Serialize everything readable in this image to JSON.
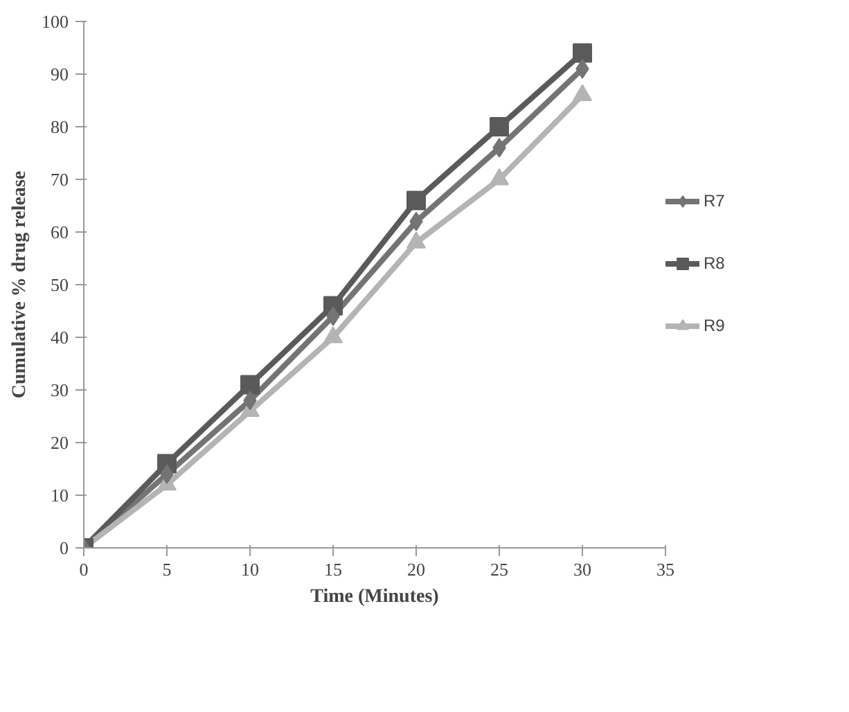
{
  "chart_data": {
    "type": "line",
    "xlabel": "Time (Minutes)",
    "ylabel": "Cumulative % drug release",
    "x": [
      0,
      5,
      10,
      15,
      20,
      25,
      30
    ],
    "series": [
      {
        "name": "R7",
        "color": "#747474",
        "marker": "diamond",
        "values": [
          0,
          14,
          28,
          44,
          62,
          76,
          91
        ]
      },
      {
        "name": "R8",
        "color": "#5a5a5a",
        "marker": "square",
        "values": [
          0,
          16,
          31,
          46,
          66,
          80,
          94
        ]
      },
      {
        "name": "R9",
        "color": "#b4b4b4",
        "marker": "triangle",
        "values": [
          0,
          12,
          26,
          40,
          58,
          70,
          86
        ]
      }
    ],
    "xlim": [
      0,
      35
    ],
    "xticks": [
      0,
      5,
      10,
      15,
      20,
      25,
      30,
      35
    ],
    "ylim": [
      0,
      100
    ],
    "yticks": [
      0,
      10,
      20,
      30,
      40,
      50,
      60,
      70,
      80,
      90,
      100
    ],
    "grid": false,
    "legend": "right",
    "line_style": "solid"
  }
}
